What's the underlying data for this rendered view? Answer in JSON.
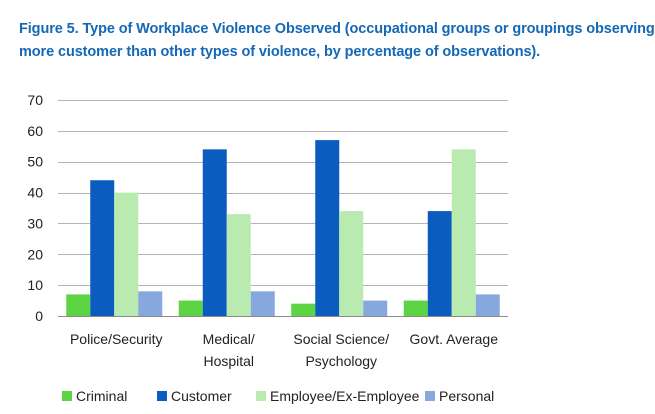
{
  "title": {
    "line1": "Figure 5.  Type of Workplace Violence Observed (occupational groups or groupings observing",
    "line2": "more customer than other types of violence, by percentage of observations)."
  },
  "chart_data": {
    "type": "bar",
    "title": "Figure 5.  Type of Workplace Violence Observed (occupational groups or groupings observing more customer than other types of violence, by percentage of observations).",
    "categories": [
      [
        "Police/Security"
      ],
      [
        "Medical/",
        "Hospital"
      ],
      [
        "Social Science/",
        "Psychology"
      ],
      [
        "Govt. Average"
      ]
    ],
    "series": [
      {
        "name": "Criminal",
        "color": "#5cd444",
        "values": [
          7,
          5,
          4,
          5
        ]
      },
      {
        "name": "Customer",
        "color": "#0c5cc0",
        "values": [
          44,
          54,
          57,
          34
        ]
      },
      {
        "name": "Employee/Ex-Employee",
        "color": "#b9ebb0",
        "values": [
          40,
          33,
          34,
          54
        ]
      },
      {
        "name": "Personal",
        "color": "#86a8dc",
        "values": [
          8,
          8,
          5,
          7
        ]
      }
    ],
    "ylim": [
      0,
      70
    ],
    "yticks": [
      0,
      10,
      20,
      30,
      40,
      50,
      60,
      70
    ],
    "xlabel": "",
    "ylabel": "",
    "grid": true,
    "legend_position": "bottom"
  }
}
